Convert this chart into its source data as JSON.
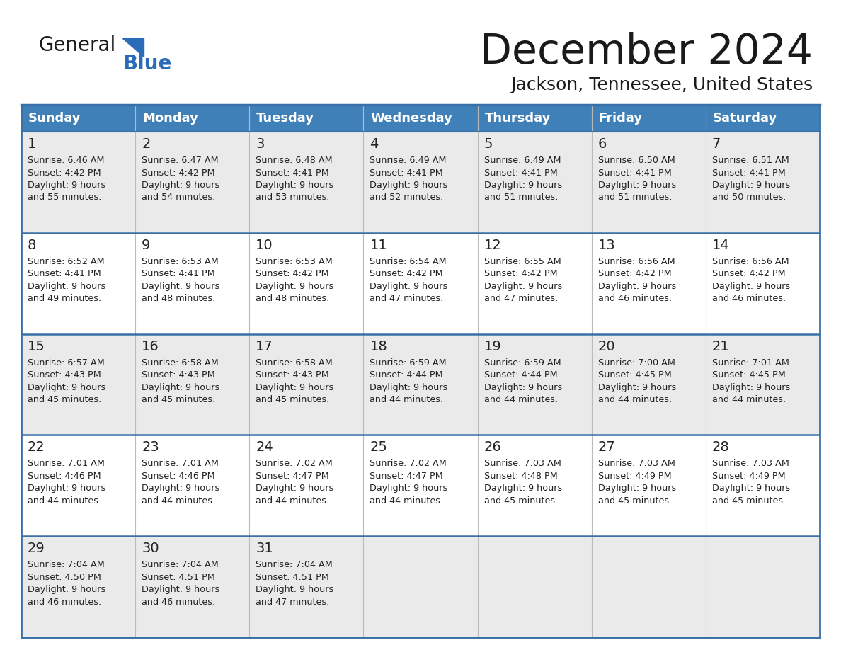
{
  "title": "December 2024",
  "subtitle": "Jackson, Tennessee, United States",
  "header_bg_color": "#4080B8",
  "header_text_color": "#FFFFFF",
  "cell_bg_odd": "#EAEAEA",
  "cell_bg_even": "#FFFFFF",
  "border_color": "#3A70A8",
  "days_of_week": [
    "Sunday",
    "Monday",
    "Tuesday",
    "Wednesday",
    "Thursday",
    "Friday",
    "Saturday"
  ],
  "weeks": [
    [
      {
        "day": "1",
        "sunrise": "6:46 AM",
        "sunset": "4:42 PM",
        "daylight_hrs": "9 hours",
        "daylight_min": "and 55 minutes."
      },
      {
        "day": "2",
        "sunrise": "6:47 AM",
        "sunset": "4:42 PM",
        "daylight_hrs": "9 hours",
        "daylight_min": "and 54 minutes."
      },
      {
        "day": "3",
        "sunrise": "6:48 AM",
        "sunset": "4:41 PM",
        "daylight_hrs": "9 hours",
        "daylight_min": "and 53 minutes."
      },
      {
        "day": "4",
        "sunrise": "6:49 AM",
        "sunset": "4:41 PM",
        "daylight_hrs": "9 hours",
        "daylight_min": "and 52 minutes."
      },
      {
        "day": "5",
        "sunrise": "6:49 AM",
        "sunset": "4:41 PM",
        "daylight_hrs": "9 hours",
        "daylight_min": "and 51 minutes."
      },
      {
        "day": "6",
        "sunrise": "6:50 AM",
        "sunset": "4:41 PM",
        "daylight_hrs": "9 hours",
        "daylight_min": "and 51 minutes."
      },
      {
        "day": "7",
        "sunrise": "6:51 AM",
        "sunset": "4:41 PM",
        "daylight_hrs": "9 hours",
        "daylight_min": "and 50 minutes."
      }
    ],
    [
      {
        "day": "8",
        "sunrise": "6:52 AM",
        "sunset": "4:41 PM",
        "daylight_hrs": "9 hours",
        "daylight_min": "and 49 minutes."
      },
      {
        "day": "9",
        "sunrise": "6:53 AM",
        "sunset": "4:41 PM",
        "daylight_hrs": "9 hours",
        "daylight_min": "and 48 minutes."
      },
      {
        "day": "10",
        "sunrise": "6:53 AM",
        "sunset": "4:42 PM",
        "daylight_hrs": "9 hours",
        "daylight_min": "and 48 minutes."
      },
      {
        "day": "11",
        "sunrise": "6:54 AM",
        "sunset": "4:42 PM",
        "daylight_hrs": "9 hours",
        "daylight_min": "and 47 minutes."
      },
      {
        "day": "12",
        "sunrise": "6:55 AM",
        "sunset": "4:42 PM",
        "daylight_hrs": "9 hours",
        "daylight_min": "and 47 minutes."
      },
      {
        "day": "13",
        "sunrise": "6:56 AM",
        "sunset": "4:42 PM",
        "daylight_hrs": "9 hours",
        "daylight_min": "and 46 minutes."
      },
      {
        "day": "14",
        "sunrise": "6:56 AM",
        "sunset": "4:42 PM",
        "daylight_hrs": "9 hours",
        "daylight_min": "and 46 minutes."
      }
    ],
    [
      {
        "day": "15",
        "sunrise": "6:57 AM",
        "sunset": "4:43 PM",
        "daylight_hrs": "9 hours",
        "daylight_min": "and 45 minutes."
      },
      {
        "day": "16",
        "sunrise": "6:58 AM",
        "sunset": "4:43 PM",
        "daylight_hrs": "9 hours",
        "daylight_min": "and 45 minutes."
      },
      {
        "day": "17",
        "sunrise": "6:58 AM",
        "sunset": "4:43 PM",
        "daylight_hrs": "9 hours",
        "daylight_min": "and 45 minutes."
      },
      {
        "day": "18",
        "sunrise": "6:59 AM",
        "sunset": "4:44 PM",
        "daylight_hrs": "9 hours",
        "daylight_min": "and 44 minutes."
      },
      {
        "day": "19",
        "sunrise": "6:59 AM",
        "sunset": "4:44 PM",
        "daylight_hrs": "9 hours",
        "daylight_min": "and 44 minutes."
      },
      {
        "day": "20",
        "sunrise": "7:00 AM",
        "sunset": "4:45 PM",
        "daylight_hrs": "9 hours",
        "daylight_min": "and 44 minutes."
      },
      {
        "day": "21",
        "sunrise": "7:01 AM",
        "sunset": "4:45 PM",
        "daylight_hrs": "9 hours",
        "daylight_min": "and 44 minutes."
      }
    ],
    [
      {
        "day": "22",
        "sunrise": "7:01 AM",
        "sunset": "4:46 PM",
        "daylight_hrs": "9 hours",
        "daylight_min": "and 44 minutes."
      },
      {
        "day": "23",
        "sunrise": "7:01 AM",
        "sunset": "4:46 PM",
        "daylight_hrs": "9 hours",
        "daylight_min": "and 44 minutes."
      },
      {
        "day": "24",
        "sunrise": "7:02 AM",
        "sunset": "4:47 PM",
        "daylight_hrs": "9 hours",
        "daylight_min": "and 44 minutes."
      },
      {
        "day": "25",
        "sunrise": "7:02 AM",
        "sunset": "4:47 PM",
        "daylight_hrs": "9 hours",
        "daylight_min": "and 44 minutes."
      },
      {
        "day": "26",
        "sunrise": "7:03 AM",
        "sunset": "4:48 PM",
        "daylight_hrs": "9 hours",
        "daylight_min": "and 45 minutes."
      },
      {
        "day": "27",
        "sunrise": "7:03 AM",
        "sunset": "4:49 PM",
        "daylight_hrs": "9 hours",
        "daylight_min": "and 45 minutes."
      },
      {
        "day": "28",
        "sunrise": "7:03 AM",
        "sunset": "4:49 PM",
        "daylight_hrs": "9 hours",
        "daylight_min": "and 45 minutes."
      }
    ],
    [
      {
        "day": "29",
        "sunrise": "7:04 AM",
        "sunset": "4:50 PM",
        "daylight_hrs": "9 hours",
        "daylight_min": "and 46 minutes."
      },
      {
        "day": "30",
        "sunrise": "7:04 AM",
        "sunset": "4:51 PM",
        "daylight_hrs": "9 hours",
        "daylight_min": "and 46 minutes."
      },
      {
        "day": "31",
        "sunrise": "7:04 AM",
        "sunset": "4:51 PM",
        "daylight_hrs": "9 hours",
        "daylight_min": "and 47 minutes."
      },
      null,
      null,
      null,
      null
    ]
  ]
}
